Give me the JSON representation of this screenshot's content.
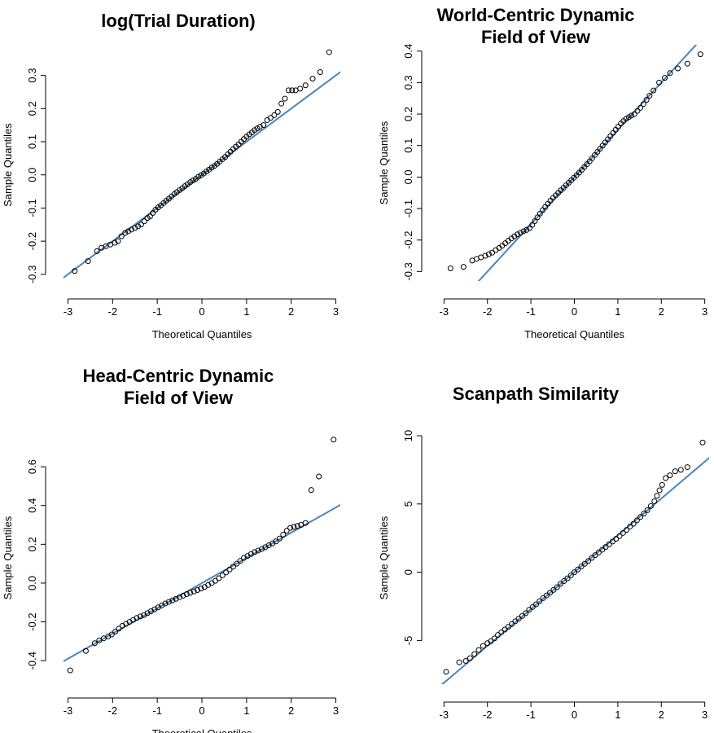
{
  "chart_data": [
    {
      "type": "scatter",
      "title": [
        "log(Trial Duration)"
      ],
      "xlabel": "Theoretical Quantiles",
      "ylabel": "Sample Quantiles",
      "xlim": [
        -3.1,
        3.1
      ],
      "ylim": [
        -0.32,
        0.38
      ],
      "xticks": [
        -3,
        -2,
        -1,
        0,
        1,
        2,
        3
      ],
      "yticks": [
        -0.3,
        -0.2,
        -0.1,
        0.0,
        0.1,
        0.2,
        0.3
      ],
      "ytick_labels": [
        "-0.3",
        "-0.2",
        "-0.1",
        "0.0",
        "0.1",
        "0.2",
        "0.3"
      ],
      "reference_line": {
        "slope": 0.1,
        "intercept": 0.0,
        "color": "#4a86b8"
      },
      "points": [
        [
          -2.85,
          -0.29
        ],
        [
          -2.55,
          -0.26
        ],
        [
          -2.35,
          -0.23
        ],
        [
          -2.25,
          -0.22
        ],
        [
          -2.15,
          -0.215
        ],
        [
          -2.05,
          -0.21
        ],
        [
          -1.95,
          -0.205
        ],
        [
          -1.88,
          -0.2
        ],
        [
          -1.8,
          -0.185
        ],
        [
          -1.72,
          -0.175
        ],
        [
          -1.65,
          -0.17
        ],
        [
          -1.58,
          -0.165
        ],
        [
          -1.5,
          -0.16
        ],
        [
          -1.43,
          -0.155
        ],
        [
          -1.36,
          -0.15
        ],
        [
          -1.29,
          -0.14
        ],
        [
          -1.22,
          -0.13
        ],
        [
          -1.16,
          -0.125
        ],
        [
          -1.1,
          -0.115
        ],
        [
          -1.04,
          -0.105
        ],
        [
          -0.98,
          -0.098
        ],
        [
          -0.92,
          -0.092
        ],
        [
          -0.86,
          -0.085
        ],
        [
          -0.8,
          -0.078
        ],
        [
          -0.74,
          -0.072
        ],
        [
          -0.68,
          -0.065
        ],
        [
          -0.62,
          -0.058
        ],
        [
          -0.56,
          -0.052
        ],
        [
          -0.5,
          -0.046
        ],
        [
          -0.44,
          -0.04
        ],
        [
          -0.38,
          -0.034
        ],
        [
          -0.32,
          -0.028
        ],
        [
          -0.26,
          -0.022
        ],
        [
          -0.2,
          -0.017
        ],
        [
          -0.14,
          -0.012
        ],
        [
          -0.08,
          -0.006
        ],
        [
          -0.02,
          -0.001
        ],
        [
          0.04,
          0.004
        ],
        [
          0.1,
          0.01
        ],
        [
          0.16,
          0.016
        ],
        [
          0.22,
          0.022
        ],
        [
          0.28,
          0.027
        ],
        [
          0.34,
          0.033
        ],
        [
          0.4,
          0.04
        ],
        [
          0.46,
          0.047
        ],
        [
          0.52,
          0.054
        ],
        [
          0.58,
          0.062
        ],
        [
          0.64,
          0.07
        ],
        [
          0.7,
          0.078
        ],
        [
          0.76,
          0.085
        ],
        [
          0.82,
          0.092
        ],
        [
          0.88,
          0.1
        ],
        [
          0.94,
          0.108
        ],
        [
          1.0,
          0.115
        ],
        [
          1.06,
          0.122
        ],
        [
          1.12,
          0.128
        ],
        [
          1.18,
          0.135
        ],
        [
          1.24,
          0.14
        ],
        [
          1.3,
          0.145
        ],
        [
          1.38,
          0.15
        ],
        [
          1.46,
          0.165
        ],
        [
          1.54,
          0.172
        ],
        [
          1.62,
          0.18
        ],
        [
          1.7,
          0.19
        ],
        [
          1.78,
          0.215
        ],
        [
          1.86,
          0.23
        ],
        [
          1.94,
          0.255
        ],
        [
          2.02,
          0.255
        ],
        [
          2.1,
          0.255
        ],
        [
          2.2,
          0.26
        ],
        [
          2.32,
          0.27
        ],
        [
          2.48,
          0.29
        ],
        [
          2.65,
          0.31
        ],
        [
          2.85,
          0.37
        ]
      ]
    },
    {
      "type": "scatter",
      "title": [
        "World-Centric Dynamic",
        "Field of View"
      ],
      "xlabel": "Theoretical Quantiles",
      "ylabel": "Sample Quantiles",
      "xlim": [
        -3.1,
        3.1
      ],
      "ylim": [
        -0.33,
        0.42
      ],
      "xticks": [
        -3,
        -2,
        -1,
        0,
        1,
        2,
        3
      ],
      "yticks": [
        -0.3,
        -0.2,
        -0.1,
        0.0,
        0.1,
        0.2,
        0.3,
        0.4
      ],
      "ytick_labels": [
        "-0.3",
        "-0.2",
        "-0.1",
        "0.0",
        "0.1",
        "0.2",
        "0.3",
        "0.4"
      ],
      "reference_line": {
        "slope": 0.15,
        "intercept": 0.0,
        "color": "#4a86b8"
      },
      "points": [
        [
          -2.85,
          -0.29
        ],
        [
          -2.55,
          -0.285
        ],
        [
          -2.35,
          -0.265
        ],
        [
          -2.25,
          -0.26
        ],
        [
          -2.15,
          -0.255
        ],
        [
          -2.05,
          -0.25
        ],
        [
          -1.97,
          -0.245
        ],
        [
          -1.89,
          -0.24
        ],
        [
          -1.81,
          -0.232
        ],
        [
          -1.73,
          -0.225
        ],
        [
          -1.66,
          -0.218
        ],
        [
          -1.59,
          -0.21
        ],
        [
          -1.52,
          -0.202
        ],
        [
          -1.45,
          -0.195
        ],
        [
          -1.38,
          -0.188
        ],
        [
          -1.31,
          -0.182
        ],
        [
          -1.24,
          -0.177
        ],
        [
          -1.17,
          -0.172
        ],
        [
          -1.1,
          -0.168
        ],
        [
          -1.03,
          -0.162
        ],
        [
          -0.97,
          -0.152
        ],
        [
          -0.91,
          -0.14
        ],
        [
          -0.85,
          -0.128
        ],
        [
          -0.79,
          -0.116
        ],
        [
          -0.73,
          -0.105
        ],
        [
          -0.67,
          -0.095
        ],
        [
          -0.61,
          -0.085
        ],
        [
          -0.55,
          -0.075
        ],
        [
          -0.49,
          -0.066
        ],
        [
          -0.43,
          -0.058
        ],
        [
          -0.37,
          -0.05
        ],
        [
          -0.31,
          -0.042
        ],
        [
          -0.25,
          -0.034
        ],
        [
          -0.19,
          -0.026
        ],
        [
          -0.13,
          -0.018
        ],
        [
          -0.07,
          -0.01
        ],
        [
          -0.01,
          -0.002
        ],
        [
          0.05,
          0.006
        ],
        [
          0.11,
          0.014
        ],
        [
          0.17,
          0.023
        ],
        [
          0.23,
          0.032
        ],
        [
          0.29,
          0.041
        ],
        [
          0.35,
          0.05
        ],
        [
          0.41,
          0.06
        ],
        [
          0.47,
          0.07
        ],
        [
          0.53,
          0.08
        ],
        [
          0.59,
          0.09
        ],
        [
          0.65,
          0.1
        ],
        [
          0.71,
          0.11
        ],
        [
          0.77,
          0.12
        ],
        [
          0.83,
          0.13
        ],
        [
          0.89,
          0.14
        ],
        [
          0.95,
          0.15
        ],
        [
          1.01,
          0.16
        ],
        [
          1.07,
          0.17
        ],
        [
          1.13,
          0.178
        ],
        [
          1.19,
          0.185
        ],
        [
          1.25,
          0.19
        ],
        [
          1.31,
          0.195
        ],
        [
          1.38,
          0.2
        ],
        [
          1.45,
          0.21
        ],
        [
          1.52,
          0.22
        ],
        [
          1.59,
          0.232
        ],
        [
          1.66,
          0.245
        ],
        [
          1.73,
          0.258
        ],
        [
          1.82,
          0.275
        ],
        [
          1.95,
          0.3
        ],
        [
          2.08,
          0.315
        ],
        [
          2.2,
          0.33
        ],
        [
          2.38,
          0.345
        ],
        [
          2.6,
          0.36
        ],
        [
          2.9,
          0.39
        ]
      ]
    },
    {
      "type": "scatter",
      "title": [
        "Head-Centric Dynamic",
        "Field of View"
      ],
      "xlabel": "Theoretical Quantiles",
      "ylabel": "Sample Quantiles",
      "xlim": [
        -3.1,
        3.1
      ],
      "ylim": [
        -0.5,
        0.76
      ],
      "xticks": [
        -3,
        -2,
        -1,
        0,
        1,
        2,
        3
      ],
      "yticks": [
        -0.4,
        -0.2,
        0.0,
        0.2,
        0.4,
        0.6
      ],
      "ytick_labels": [
        "-0.4",
        "-0.2",
        "0.0",
        "0.2",
        "0.4",
        "0.6"
      ],
      "reference_line": {
        "slope": 0.13,
        "intercept": 0.0,
        "color": "#4a86b8"
      },
      "points": [
        [
          -2.95,
          -0.45
        ],
        [
          -2.6,
          -0.35
        ],
        [
          -2.4,
          -0.31
        ],
        [
          -2.3,
          -0.295
        ],
        [
          -2.2,
          -0.285
        ],
        [
          -2.1,
          -0.275
        ],
        [
          -2.02,
          -0.265
        ],
        [
          -1.94,
          -0.25
        ],
        [
          -1.86,
          -0.235
        ],
        [
          -1.78,
          -0.22
        ],
        [
          -1.7,
          -0.21
        ],
        [
          -1.62,
          -0.2
        ],
        [
          -1.54,
          -0.19
        ],
        [
          -1.46,
          -0.18
        ],
        [
          -1.38,
          -0.172
        ],
        [
          -1.3,
          -0.165
        ],
        [
          -1.22,
          -0.155
        ],
        [
          -1.14,
          -0.145
        ],
        [
          -1.06,
          -0.135
        ],
        [
          -0.98,
          -0.125
        ],
        [
          -0.9,
          -0.115
        ],
        [
          -0.82,
          -0.105
        ],
        [
          -0.74,
          -0.097
        ],
        [
          -0.66,
          -0.089
        ],
        [
          -0.58,
          -0.081
        ],
        [
          -0.5,
          -0.073
        ],
        [
          -0.42,
          -0.065
        ],
        [
          -0.34,
          -0.057
        ],
        [
          -0.26,
          -0.05
        ],
        [
          -0.18,
          -0.043
        ],
        [
          -0.1,
          -0.036
        ],
        [
          -0.02,
          -0.028
        ],
        [
          0.06,
          -0.02
        ],
        [
          0.14,
          -0.01
        ],
        [
          0.22,
          0.0
        ],
        [
          0.3,
          0.012
        ],
        [
          0.38,
          0.025
        ],
        [
          0.46,
          0.04
        ],
        [
          0.54,
          0.055
        ],
        [
          0.62,
          0.07
        ],
        [
          0.7,
          0.085
        ],
        [
          0.78,
          0.1
        ],
        [
          0.86,
          0.115
        ],
        [
          0.94,
          0.13
        ],
        [
          1.02,
          0.14
        ],
        [
          1.1,
          0.15
        ],
        [
          1.18,
          0.16
        ],
        [
          1.26,
          0.168
        ],
        [
          1.34,
          0.176
        ],
        [
          1.42,
          0.185
        ],
        [
          1.5,
          0.195
        ],
        [
          1.58,
          0.205
        ],
        [
          1.66,
          0.215
        ],
        [
          1.74,
          0.23
        ],
        [
          1.82,
          0.25
        ],
        [
          1.9,
          0.27
        ],
        [
          1.98,
          0.285
        ],
        [
          2.06,
          0.29
        ],
        [
          2.14,
          0.295
        ],
        [
          2.22,
          0.3
        ],
        [
          2.32,
          0.31
        ],
        [
          2.45,
          0.48
        ],
        [
          2.62,
          0.55
        ],
        [
          2.95,
          0.74
        ]
      ]
    },
    {
      "type": "scatter",
      "title": [
        "Scanpath Similarity"
      ],
      "xlabel": "Theoretical Quantiles",
      "ylabel": "Sample Quantiles",
      "xlim": [
        -3.1,
        3.1
      ],
      "ylim": [
        -8.2,
        10.3
      ],
      "xticks": [
        -3,
        -2,
        -1,
        0,
        1,
        2,
        3
      ],
      "yticks": [
        -5,
        0,
        5,
        10
      ],
      "ytick_labels": [
        "-5",
        "0",
        "5",
        "10"
      ],
      "reference_line": {
        "slope": 2.7,
        "intercept": 0.0,
        "color": "#4a86b8"
      },
      "points": [
        [
          -2.95,
          -7.3
        ],
        [
          -2.65,
          -6.6
        ],
        [
          -2.5,
          -6.5
        ],
        [
          -2.4,
          -6.3
        ],
        [
          -2.3,
          -6.0
        ],
        [
          -2.2,
          -5.7
        ],
        [
          -2.1,
          -5.4
        ],
        [
          -2.0,
          -5.2
        ],
        [
          -1.92,
          -5.05
        ],
        [
          -1.84,
          -4.85
        ],
        [
          -1.76,
          -4.6
        ],
        [
          -1.68,
          -4.4
        ],
        [
          -1.6,
          -4.2
        ],
        [
          -1.52,
          -4.0
        ],
        [
          -1.44,
          -3.8
        ],
        [
          -1.36,
          -3.6
        ],
        [
          -1.28,
          -3.4
        ],
        [
          -1.2,
          -3.2
        ],
        [
          -1.12,
          -3.0
        ],
        [
          -1.04,
          -2.75
        ],
        [
          -0.96,
          -2.55
        ],
        [
          -0.88,
          -2.35
        ],
        [
          -0.8,
          -2.12
        ],
        [
          -0.72,
          -1.9
        ],
        [
          -0.64,
          -1.7
        ],
        [
          -0.56,
          -1.5
        ],
        [
          -0.48,
          -1.3
        ],
        [
          -0.4,
          -1.1
        ],
        [
          -0.32,
          -0.85
        ],
        [
          -0.24,
          -0.65
        ],
        [
          -0.16,
          -0.45
        ],
        [
          -0.08,
          -0.23
        ],
        [
          0.0,
          0.0
        ],
        [
          0.08,
          0.2
        ],
        [
          0.16,
          0.42
        ],
        [
          0.24,
          0.62
        ],
        [
          0.32,
          0.82
        ],
        [
          0.4,
          1.05
        ],
        [
          0.48,
          1.25
        ],
        [
          0.56,
          1.45
        ],
        [
          0.64,
          1.65
        ],
        [
          0.72,
          1.85
        ],
        [
          0.8,
          2.05
        ],
        [
          0.88,
          2.25
        ],
        [
          0.96,
          2.45
        ],
        [
          1.04,
          2.65
        ],
        [
          1.12,
          2.88
        ],
        [
          1.2,
          3.1
        ],
        [
          1.28,
          3.35
        ],
        [
          1.36,
          3.55
        ],
        [
          1.44,
          3.8
        ],
        [
          1.52,
          4.05
        ],
        [
          1.6,
          4.3
        ],
        [
          1.68,
          4.55
        ],
        [
          1.76,
          4.85
        ],
        [
          1.84,
          5.2
        ],
        [
          1.9,
          5.6
        ],
        [
          1.96,
          6.0
        ],
        [
          2.02,
          6.4
        ],
        [
          2.1,
          6.9
        ],
        [
          2.2,
          7.1
        ],
        [
          2.32,
          7.4
        ],
        [
          2.45,
          7.5
        ],
        [
          2.6,
          7.7
        ],
        [
          2.95,
          9.5
        ]
      ]
    }
  ]
}
